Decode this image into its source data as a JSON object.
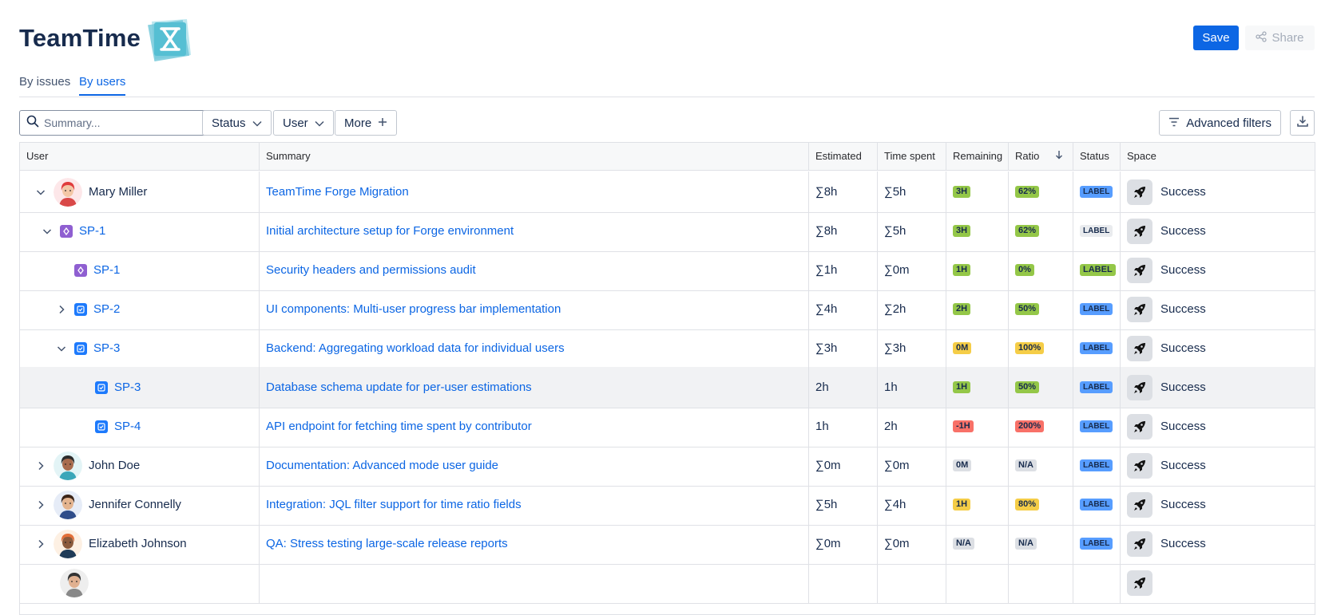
{
  "app": {
    "title": "TeamTime",
    "save_label": "Save",
    "share_label": "Share"
  },
  "tabs": [
    {
      "label": "By issues",
      "active": false
    },
    {
      "label": "By users",
      "active": true
    }
  ],
  "toolbar": {
    "search_placeholder": "Summary...",
    "status_label": "Status",
    "user_label": "User",
    "more_label": "More",
    "advanced_filters_label": "Advanced filters"
  },
  "table": {
    "columns": [
      "User",
      "Summary",
      "Estimated",
      "Time spent",
      "Remaining",
      "Ratio",
      "Status",
      "Space"
    ],
    "sort": {
      "column": "Ratio",
      "direction": "descending"
    },
    "rows": [
      {
        "level": 0,
        "expand": "expanded",
        "type": "user",
        "name": "Mary Miller",
        "summary": "TeamTime Forge Migration",
        "estimated": "∑8h",
        "time_spent": "∑5h",
        "remaining": "3H",
        "remaining_tone": "green",
        "ratio": "62%",
        "ratio_tone": "green",
        "status": "LABEL",
        "status_tone": "blue",
        "space": "Success"
      },
      {
        "level": 1,
        "expand": "expanded",
        "type": "subtask",
        "name": "SP-1",
        "summary": "Initial architecture setup for Forge environment",
        "estimated": "∑8h",
        "time_spent": "∑5h",
        "remaining": "3H",
        "remaining_tone": "green",
        "ratio": "62%",
        "ratio_tone": "green",
        "status": "LABEL",
        "status_tone": "grey",
        "space": "Success"
      },
      {
        "level": 2,
        "expand": "none",
        "type": "subtask",
        "name": "SP-1",
        "summary": "Security headers and permissions audit",
        "estimated": "∑1h",
        "time_spent": "∑0m",
        "remaining": "1H",
        "remaining_tone": "green",
        "ratio": "0%",
        "ratio_tone": "green",
        "status": "LABEL",
        "status_tone": "green",
        "space": "Success"
      },
      {
        "level": 2,
        "expand": "collapsed",
        "type": "task",
        "name": "SP-2",
        "summary": "UI components: Multi-user progress bar implementation",
        "estimated": "∑4h",
        "time_spent": "∑2h",
        "remaining": "2H",
        "remaining_tone": "green",
        "ratio": "50%",
        "ratio_tone": "green",
        "status": "LABEL",
        "status_tone": "blue",
        "space": "Success"
      },
      {
        "level": 2,
        "expand": "expanded",
        "type": "task",
        "name": "SP-3",
        "summary": "Backend: Aggregating workload data for individual users",
        "estimated": "∑3h",
        "time_spent": "∑3h",
        "remaining": "0M",
        "remaining_tone": "yellow",
        "ratio": "100%",
        "ratio_tone": "yellow",
        "status": "LABEL",
        "status_tone": "blue",
        "space": "Success"
      },
      {
        "level": 3,
        "expand": "none",
        "type": "task",
        "name": "SP-3",
        "summary": "Database schema update for per-user estimations",
        "estimated": "2h",
        "time_spent": "1h",
        "remaining": "1H",
        "remaining_tone": "green",
        "ratio": "50%",
        "ratio_tone": "green",
        "status": "LABEL",
        "status_tone": "blue",
        "space": "Success",
        "highlighted": true
      },
      {
        "level": 3,
        "expand": "none",
        "type": "task",
        "name": "SP-4",
        "summary": "API endpoint for fetching time spent by contributor",
        "estimated": "1h",
        "time_spent": "2h",
        "remaining": "-1H",
        "remaining_tone": "red",
        "ratio": "200%",
        "ratio_tone": "red",
        "status": "LABEL",
        "status_tone": "blue",
        "space": "Success"
      },
      {
        "level": 0,
        "expand": "collapsed",
        "type": "user",
        "name": "John Doe",
        "summary": "Documentation: Advanced mode user guide",
        "estimated": "∑0m",
        "time_spent": "∑0m",
        "remaining": "0M",
        "remaining_tone": "grey",
        "ratio": "N/A",
        "ratio_tone": "grey",
        "status": "LABEL",
        "status_tone": "blue",
        "space": "Success"
      },
      {
        "level": 0,
        "expand": "collapsed",
        "type": "user",
        "name": "Jennifer Connelly",
        "summary": "Integration: JQL filter support for time ratio fields",
        "estimated": "∑5h",
        "time_spent": "∑4h",
        "remaining": "1H",
        "remaining_tone": "yellow",
        "ratio": "80%",
        "ratio_tone": "yellow",
        "status": "LABEL",
        "status_tone": "blue",
        "space": "Success"
      },
      {
        "level": 0,
        "expand": "collapsed",
        "type": "user",
        "name": "Elizabeth Johnson",
        "summary": "QA: Stress testing large-scale release reports",
        "estimated": "∑0m",
        "time_spent": "∑0m",
        "remaining": "N/A",
        "remaining_tone": "grey",
        "ratio": "N/A",
        "ratio_tone": "grey",
        "status": "LABEL",
        "status_tone": "blue",
        "space": "Success"
      }
    ]
  },
  "colors": {
    "accent": "#0c66e4",
    "logo": "#6cc6d8",
    "lozenge_green": "#94c748",
    "lozenge_yellow": "#f5cd47",
    "lozenge_red": "#f87168",
    "lozenge_grey": "#dcdfe4",
    "lozenge_blue": "#579dff"
  },
  "icons": {
    "logo": "hourglass-logo-icon",
    "share": "share-icon",
    "search": "search-icon",
    "dropdown": "chevron-down-icon",
    "more": "plus-icon",
    "filter": "filter-lines-icon",
    "download": "download-icon",
    "sort": "arrow-down-icon",
    "expand": "chevron-icon",
    "subtask": "subtask-icon",
    "task": "task-checkbox-icon",
    "space": "rocket-icon",
    "avatar": "avatar-icon"
  }
}
